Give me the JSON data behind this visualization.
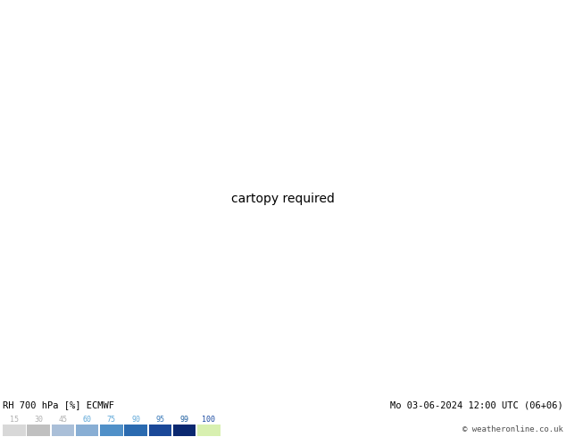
{
  "title_left": "RH 700 hPa [%] ECMWF",
  "title_right": "Mo 03-06-2024 12:00 UTC (06+06)",
  "copyright": "© weatheronline.co.uk",
  "colorbar_levels": [
    15,
    30,
    45,
    60,
    75,
    90,
    95,
    99,
    100
  ],
  "figsize": [
    6.34,
    4.9
  ],
  "dpi": 100,
  "map_extent": [
    -20,
    20,
    42,
    62
  ],
  "fill_levels": [
    0,
    15,
    30,
    45,
    60,
    75,
    90,
    95,
    99,
    105
  ],
  "fill_colors": [
    "#f0f0f0",
    "#d8d8d8",
    "#c0c0c0",
    "#aabfd8",
    "#88aed4",
    "#5090c8",
    "#2a6ab0",
    "#1a4898",
    "#d8f0b0"
  ],
  "contour_levels": [
    30,
    60,
    70,
    80,
    90
  ],
  "contour_color": "#707070",
  "contour_lw": 0.5,
  "coastline_color": "#00bb00",
  "coastline_lw": 0.8,
  "label_fontsize": 6,
  "bottom_bg": "#ffffff",
  "legend_colors": [
    "#d8d8d8",
    "#c0c0c0",
    "#aabfd8",
    "#88aed4",
    "#5090c8",
    "#2a6ab0",
    "#1a4898",
    "#0a2870",
    "#d8f0b0"
  ],
  "legend_label_colors": [
    "#b0b0b0",
    "#b0b0b0",
    "#b0b0b0",
    "#60a8d8",
    "#60a8d8",
    "#60a8d8",
    "#3878b8",
    "#2060a0",
    "#1848a0"
  ]
}
